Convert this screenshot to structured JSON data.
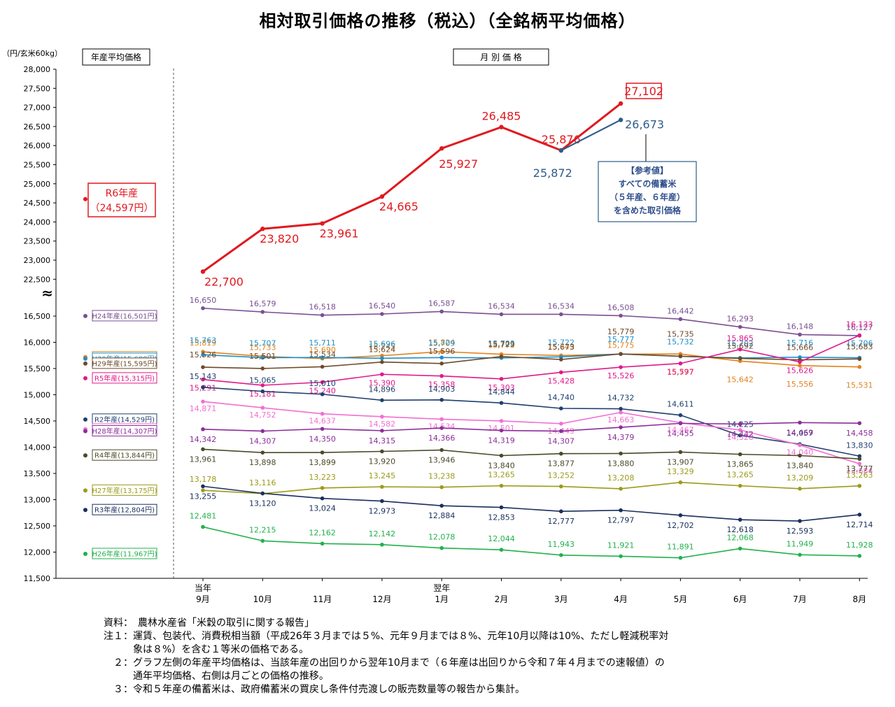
{
  "title": "相対取引価格の推移（税込）（全銘柄平均価格）",
  "y_unit": "（円/玄米60kg）",
  "left_header": "年産平均価格",
  "right_header": "月 別 価 格",
  "break_mark": "≈",
  "colors": {
    "R6": "#e0191f",
    "R6ref": "#2e5c8a",
    "H24": "#7b4f91",
    "R1": "#e0831d",
    "H30": "#1f8fc9",
    "H29": "#6e4a2a",
    "R5": "#e0198a",
    "R2": "#1f3f6e",
    "H25": "#f36fd1",
    "H28": "#8b2e9a",
    "R4": "#4a4a2a",
    "H27": "#9c9a1a",
    "R3": "#1a2f5c",
    "H26": "#22b14c"
  },
  "chart_data": {
    "type": "line",
    "title": "相対取引価格の推移（税込）（全銘柄平均価格）",
    "ylabel": "（円/玄米60kg）",
    "categories": [
      "当年 9月",
      "10月",
      "11月",
      "12月",
      "翌年 1月",
      "2月",
      "3月",
      "4月",
      "5月",
      "6月",
      "7月",
      "8月"
    ],
    "x_ticks": [
      {
        "top": "当年",
        "bottom": "9月"
      },
      {
        "top": "",
        "bottom": "10月"
      },
      {
        "top": "",
        "bottom": "11月"
      },
      {
        "top": "",
        "bottom": "12月"
      },
      {
        "top": "翌年",
        "bottom": "1月"
      },
      {
        "top": "",
        "bottom": "2月"
      },
      {
        "top": "",
        "bottom": "3月"
      },
      {
        "top": "",
        "bottom": "4月"
      },
      {
        "top": "",
        "bottom": "5月"
      },
      {
        "top": "",
        "bottom": "6月"
      },
      {
        "top": "",
        "bottom": "7月"
      },
      {
        "top": "",
        "bottom": "8月"
      }
    ],
    "y_upper_ticks": [
      "28,000",
      "27,500",
      "27,000",
      "26,500",
      "26,000",
      "25,500",
      "25,000",
      "24,500",
      "24,000",
      "23,500",
      "23,000",
      "22,500"
    ],
    "y_lower_ticks": [
      "16,500",
      "16,000",
      "15,500",
      "15,000",
      "14,500",
      "14,000",
      "13,500",
      "13,000",
      "12,500",
      "12,000",
      "11,500"
    ],
    "ylim_upper": [
      22500,
      28000
    ],
    "ylim_lower": [
      11500,
      16500
    ],
    "series": [
      {
        "key": "R6",
        "name": "R6年産",
        "annual_label": "R6年産",
        "annual_value_label": "（24,597円）",
        "annual": 24597,
        "values": [
          22700,
          23820,
          23961,
          24665,
          25927,
          26485,
          25876,
          27102,
          null,
          null,
          null,
          null
        ],
        "labels": [
          "22,700",
          "23,820",
          "23,961",
          "24,665",
          "25,927",
          "26,485",
          "25,876",
          "27,102",
          "",
          "",
          "",
          ""
        ]
      },
      {
        "key": "R6ref",
        "name": "【参考値】すべての備蓄米（５年産、６年産）を含めた取引価格",
        "values": [
          null,
          null,
          null,
          null,
          null,
          null,
          25872,
          26673,
          null,
          null,
          null,
          null
        ],
        "labels": [
          "",
          "",
          "",
          "",
          "",
          "",
          "25,872",
          "26,673",
          "",
          "",
          "",
          ""
        ]
      },
      {
        "key": "H24",
        "name": "H24年産",
        "annual_label": "H24年産(16,501円)",
        "annual": 16501,
        "values": [
          16650,
          16579,
          16518,
          16540,
          16587,
          16534,
          16534,
          16508,
          16442,
          16293,
          16148,
          16127
        ],
        "labels": [
          "16,650",
          "16,579",
          "16,518",
          "16,540",
          "16,587",
          "16,534",
          "16,534",
          "16,508",
          "16,442",
          "16,293",
          "16,148",
          "16,127"
        ]
      },
      {
        "key": "R1",
        "name": "R元年産",
        "annual_label": "R元年産(15,716円)",
        "annual": 15716,
        "values": [
          15819,
          15733,
          15690,
          15745,
          15824,
          15773,
          15749,
          15775,
          15777,
          15642,
          15556,
          15531
        ],
        "labels": [
          "15,819",
          "15,733",
          "15,690",
          "15,745",
          "15,824",
          "15,773",
          "15,749",
          "15,775",
          "15,777",
          "15,642",
          "15,556",
          "15,531"
        ]
      },
      {
        "key": "H30",
        "name": "H30年産",
        "annual_label": "H30年産(15,688円)",
        "annual": 15688,
        "values": [
          15763,
          15707,
          15711,
          15696,
          15709,
          15703,
          15722,
          15777,
          15732,
          15702,
          15716,
          15706
        ],
        "labels": [
          "15,763",
          "15,707",
          "15,711",
          "15,696",
          "15,709",
          "15,703",
          "15,722",
          "15,777",
          "15,732",
          "15,702",
          "15,716",
          "15,706"
        ]
      },
      {
        "key": "H29",
        "name": "H29年産",
        "annual_label": "H29年産(15,595円)",
        "annual": 15595,
        "values": [
          15526,
          15501,
          15534,
          15624,
          15596,
          15729,
          15673,
          15779,
          15735,
          15692,
          15666,
          15683
        ],
        "labels": [
          "15,526",
          "15,501",
          "15,534",
          "15,624",
          "15,596",
          "15,729",
          "15,673",
          "15,779",
          "15,735",
          "15,692",
          "15,666",
          "15,683"
        ]
      },
      {
        "key": "R5",
        "name": "R5年産",
        "annual_label": "R5年産(15,315円)",
        "annual": 15315,
        "values": [
          15291,
          15181,
          15240,
          15390,
          15358,
          15303,
          15428,
          15526,
          15597,
          15865,
          15626,
          16133
        ],
        "labels": [
          "15,291",
          "15,181",
          "15,240",
          "15,390",
          "15,358",
          "15,303",
          "15,428",
          "15,526",
          "15,597",
          "15,865",
          "15,626",
          "16,133"
        ]
      },
      {
        "key": "R2",
        "name": "R2年産",
        "annual_label": "R2年産(14,529円)",
        "annual": 14529,
        "values": [
          15143,
          15065,
          15010,
          14896,
          14903,
          14844,
          14740,
          14732,
          14611,
          14225,
          14057,
          13830
        ],
        "labels": [
          "15,143",
          "15,065",
          "15,010",
          "14,896",
          "14,903",
          "14,844",
          "14,740",
          "14,732",
          "14,611",
          "14,225",
          "14,057",
          "13,830"
        ]
      },
      {
        "key": "H25",
        "name": "H25年産",
        "annual_label": "H25年産(14,341円)",
        "annual": 14341,
        "values": [
          14871,
          14752,
          14637,
          14582,
          14534,
          14501,
          14449,
          14663,
          14467,
          14328,
          14040,
          13684
        ],
        "labels": [
          "14,871",
          "14,752",
          "14,637",
          "14,582",
          "14,534",
          "14,501",
          "14,449",
          "14,663",
          "14,467",
          "14,328",
          "14,040",
          "13,684"
        ]
      },
      {
        "key": "H28",
        "name": "H28年産",
        "annual_label": "H28年産(14,307円)",
        "annual": 14307,
        "values": [
          14342,
          14307,
          14350,
          14315,
          14366,
          14319,
          14307,
          14379,
          14455,
          14442,
          14469,
          14458
        ],
        "labels": [
          "14,342",
          "14,307",
          "14,350",
          "14,315",
          "14,366",
          "14,319",
          "14,307",
          "14,379",
          "14,455",
          "14,442",
          "14,469",
          "14,458"
        ]
      },
      {
        "key": "R4",
        "name": "R4年産",
        "annual_label": "R4年産(13,844円)",
        "annual": 13844,
        "values": [
          13961,
          13898,
          13899,
          13920,
          13946,
          13840,
          13877,
          13880,
          13907,
          13865,
          13840,
          13777
        ],
        "labels": [
          "13,961",
          "13,898",
          "13,899",
          "13,920",
          "13,946",
          "13,840",
          "13,877",
          "13,880",
          "13,907",
          "13,865",
          "13,840",
          "13,777"
        ]
      },
      {
        "key": "H27",
        "name": "H27年産",
        "annual_label": "H27年産(13,175円)",
        "annual": 13175,
        "values": [
          13178,
          13116,
          13223,
          13245,
          13238,
          13265,
          13252,
          13208,
          13329,
          13265,
          13209,
          13263
        ],
        "labels": [
          "13,178",
          "13,116",
          "13,223",
          "13,245",
          "13,238",
          "13,265",
          "13,252",
          "13,208",
          "13,329",
          "13,265",
          "13,209",
          "13,263"
        ]
      },
      {
        "key": "R3",
        "name": "R3年産",
        "annual_label": "R3年産(12,804円)",
        "annual": 12804,
        "values": [
          13255,
          13120,
          13024,
          12973,
          12884,
          12853,
          12777,
          12797,
          12702,
          12618,
          12593,
          12714
        ],
        "labels": [
          "13,255",
          "13,120",
          "13,024",
          "12,973",
          "12,884",
          "12,853",
          "12,777",
          "12,797",
          "12,702",
          "12,618",
          "12,593",
          "12,714"
        ]
      },
      {
        "key": "H26",
        "name": "H26年産",
        "annual_label": "H26年産(11,967円)",
        "annual": 11967,
        "values": [
          12481,
          12215,
          12162,
          12142,
          12078,
          12044,
          11943,
          11921,
          11891,
          12068,
          11949,
          11928
        ],
        "labels": [
          "12,481",
          "12,215",
          "12,162",
          "12,142",
          "12,078",
          "12,044",
          "11,943",
          "11,921",
          "11,891",
          "12,068",
          "11,949",
          "11,928"
        ]
      }
    ],
    "reference_box": [
      "【参考値】",
      "すべての備蓄米",
      "（５年産、６年産）",
      "を含めた取引価格"
    ]
  },
  "notes": [
    "資料：　農林水産省「米穀の取引に関する報告」",
    "注１：運賃、包装代、消費税相当額（平成26年３月までは５%、元年９月までは８%、元年10月以降は10%、ただし軽減税率対",
    "　　　象は８%）を含む１等米の価格である。",
    "　２：グラフ左側の年産平均価格は、当該年産の出回りから翌年10月まで（６年産は出回りから令和７年４月までの速報値）の",
    "　　　通年平均価格、右側は月ごとの価格の推移。",
    "　３：令和５年産の備蓄米は、政府備蓄米の買戻し条件付売渡しの販売数量等の報告から集計。"
  ]
}
